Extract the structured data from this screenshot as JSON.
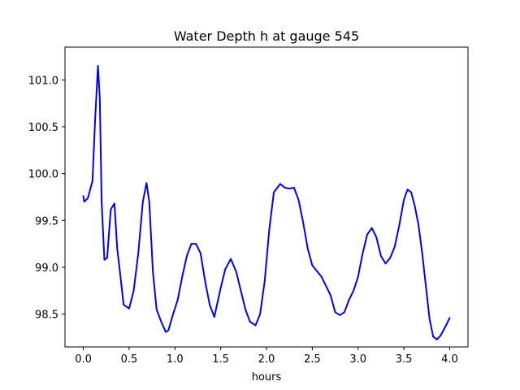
{
  "chart_data": {
    "type": "line",
    "title": "Water Depth h at gauge 545",
    "xlabel": "hours",
    "ylabel": "",
    "xlim": [
      -0.2,
      4.2
    ],
    "ylim": [
      98.15,
      101.35
    ],
    "xticks": [
      0.0,
      0.5,
      1.0,
      1.5,
      2.0,
      2.5,
      3.0,
      3.5,
      4.0
    ],
    "xtick_labels": [
      "0.0",
      "0.5",
      "1.0",
      "1.5",
      "2.0",
      "2.5",
      "3.0",
      "3.5",
      "4.0"
    ],
    "yticks": [
      98.5,
      99.0,
      99.5,
      100.0,
      100.5,
      101.0
    ],
    "ytick_labels": [
      "98.5",
      "99.0",
      "99.5",
      "100.0",
      "100.5",
      "101.0"
    ],
    "grid": false,
    "series": [
      {
        "color": "#0000ff",
        "x": [
          0.0,
          0.01,
          0.05,
          0.1,
          0.13,
          0.16,
          0.18,
          0.2,
          0.23,
          0.26,
          0.3,
          0.34,
          0.37,
          0.4,
          0.44,
          0.5,
          0.55,
          0.6,
          0.65,
          0.69,
          0.72,
          0.76,
          0.8,
          0.85,
          0.9,
          0.93,
          0.98,
          1.03,
          1.08,
          1.13,
          1.18,
          1.23,
          1.28,
          1.33,
          1.38,
          1.43,
          1.5,
          1.55,
          1.61,
          1.67,
          1.72,
          1.77,
          1.82,
          1.88,
          1.93,
          1.98,
          2.03,
          2.08,
          2.15,
          2.2,
          2.25,
          2.3,
          2.35,
          2.4,
          2.45,
          2.5,
          2.55,
          2.6,
          2.65,
          2.7,
          2.75,
          2.8,
          2.85,
          2.9,
          2.95,
          3.0,
          3.05,
          3.1,
          3.15,
          3.2,
          3.25,
          3.3,
          3.35,
          3.4,
          3.45,
          3.5,
          3.54,
          3.58,
          3.62,
          3.66,
          3.7,
          3.74,
          3.78,
          3.82,
          3.86,
          3.9,
          3.95,
          4.0
        ],
        "y": [
          99.76,
          99.7,
          99.74,
          99.92,
          100.6,
          101.15,
          100.8,
          99.7,
          99.08,
          99.1,
          99.62,
          99.68,
          99.2,
          98.95,
          98.6,
          98.56,
          98.75,
          99.15,
          99.7,
          99.9,
          99.7,
          98.95,
          98.55,
          98.42,
          98.31,
          98.33,
          98.5,
          98.65,
          98.9,
          99.12,
          99.25,
          99.25,
          99.15,
          98.85,
          98.6,
          98.47,
          98.78,
          98.98,
          99.09,
          98.95,
          98.75,
          98.55,
          98.42,
          98.38,
          98.5,
          98.85,
          99.4,
          99.8,
          99.89,
          99.85,
          99.84,
          99.85,
          99.72,
          99.48,
          99.2,
          99.02,
          98.96,
          98.9,
          98.8,
          98.7,
          98.52,
          98.49,
          98.52,
          98.65,
          98.75,
          98.9,
          99.15,
          99.35,
          99.42,
          99.32,
          99.12,
          99.04,
          99.1,
          99.22,
          99.45,
          99.72,
          99.83,
          99.8,
          99.65,
          99.45,
          99.15,
          98.8,
          98.45,
          98.26,
          98.23,
          98.27,
          98.36,
          98.46
        ]
      }
    ]
  }
}
